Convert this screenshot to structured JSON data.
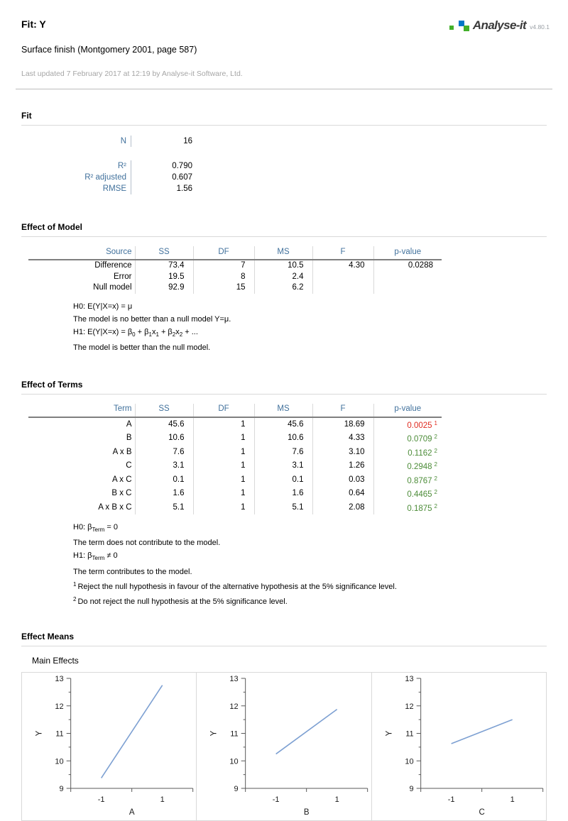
{
  "header": {
    "title": "Fit: Y",
    "subtitle": "Surface finish (Montgomery 2001, page 587)",
    "updated": "Last updated 7 February 2017 at 12:19 by Analyse-it Software, Ltd.",
    "logo": {
      "brand": "Analyse-it",
      "version": "v4.80.1"
    }
  },
  "colors": {
    "accent_blue": "#41719c",
    "significant": "#e02b20",
    "not_significant": "#4c8c38",
    "chart_line": "#7da0d2",
    "axis": "#595959",
    "logo_green": "#43b02a",
    "logo_blue": "#0077c8"
  },
  "fit": {
    "heading": "Fit",
    "rows": [
      {
        "label": "N",
        "value": "16"
      },
      {
        "label": "R²",
        "value": "0.790"
      },
      {
        "label": "R² adjusted",
        "value": "0.607"
      },
      {
        "label": "RMSE",
        "value": "1.56"
      }
    ]
  },
  "effect_of_model": {
    "heading": "Effect of Model",
    "columns": [
      "Source",
      "SS",
      "DF",
      "MS",
      "F",
      "p-value"
    ],
    "rows": [
      {
        "source": "Difference",
        "ss": "73.4",
        "df": "7",
        "ms": "10.5",
        "f": "4.30",
        "p": "0.0288"
      },
      {
        "source": "Error",
        "ss": "19.5",
        "df": "8",
        "ms": "2.4",
        "f": "",
        "p": ""
      },
      {
        "source": "Null model",
        "ss": "92.9",
        "df": "15",
        "ms": "6.2",
        "f": "",
        "p": ""
      }
    ],
    "hypotheses": [
      {
        "html": "H0: E(Y|X=x) = μ"
      },
      {
        "html": "The model is no better than a null model Y=μ."
      },
      {
        "html": "H1: E(Y|X=x) = β<sub>0</sub> + β<sub>1</sub>x<sub>1</sub> + β<sub>2</sub>x<sub>2</sub> + ..."
      },
      {
        "html": "The model is better than the null model."
      }
    ]
  },
  "effect_of_terms": {
    "heading": "Effect of Terms",
    "columns": [
      "Term",
      "SS",
      "DF",
      "MS",
      "F",
      "p-value"
    ],
    "rows": [
      {
        "term": "A",
        "ss": "45.6",
        "df": "1",
        "ms": "45.6",
        "f": "18.69",
        "p": "0.0025",
        "note": "1"
      },
      {
        "term": "B",
        "ss": "10.6",
        "df": "1",
        "ms": "10.6",
        "f": "4.33",
        "p": "0.0709",
        "note": "2"
      },
      {
        "term": "A x B",
        "ss": "7.6",
        "df": "1",
        "ms": "7.6",
        "f": "3.10",
        "p": "0.1162",
        "note": "2"
      },
      {
        "term": "C",
        "ss": "3.1",
        "df": "1",
        "ms": "3.1",
        "f": "1.26",
        "p": "0.2948",
        "note": "2"
      },
      {
        "term": "A x C",
        "ss": "0.1",
        "df": "1",
        "ms": "0.1",
        "f": "0.03",
        "p": "0.8767",
        "note": "2"
      },
      {
        "term": "B x C",
        "ss": "1.6",
        "df": "1",
        "ms": "1.6",
        "f": "0.64",
        "p": "0.4465",
        "note": "2"
      },
      {
        "term": "A x B x C",
        "ss": "5.1",
        "df": "1",
        "ms": "5.1",
        "f": "2.08",
        "p": "0.1875",
        "note": "2"
      }
    ],
    "hypotheses": [
      {
        "html": "H0: β<sub>Term</sub> = 0"
      },
      {
        "html": "The term does not contribute to the model."
      },
      {
        "html": "H1: β<sub>Term</sub> ≠ 0"
      },
      {
        "html": "The term contributes to the model."
      }
    ],
    "footnotes": [
      {
        "marker": "1",
        "text": "Reject the null hypothesis in favour of the alternative hypothesis at the 5% significance level.",
        "type": "reject"
      },
      {
        "marker": "2",
        "text": "Do not reject the null hypothesis at the 5% significance level.",
        "type": "accept"
      }
    ]
  },
  "effect_means": {
    "heading": "Effect Means",
    "subheading": "Main Effects"
  },
  "chart_data": [
    {
      "type": "line",
      "x_categories": [
        "-1",
        "1"
      ],
      "series": [
        {
          "name": "Y",
          "values": [
            9.375,
            12.75
          ]
        }
      ],
      "xlabel": "A",
      "ylabel": "Y",
      "ylim": [
        9,
        13
      ],
      "yticks": [
        9,
        10,
        11,
        12,
        13
      ],
      "grid": false,
      "legend": false
    },
    {
      "type": "line",
      "x_categories": [
        "-1",
        "1"
      ],
      "series": [
        {
          "name": "Y",
          "values": [
            10.25,
            11.875
          ]
        }
      ],
      "xlabel": "B",
      "ylabel": "Y",
      "ylim": [
        9,
        13
      ],
      "yticks": [
        9,
        10,
        11,
        12,
        13
      ],
      "grid": false,
      "legend": false
    },
    {
      "type": "line",
      "x_categories": [
        "-1",
        "1"
      ],
      "series": [
        {
          "name": "Y",
          "values": [
            10.625,
            11.5
          ]
        }
      ],
      "xlabel": "C",
      "ylabel": "Y",
      "ylim": [
        9,
        13
      ],
      "yticks": [
        9,
        10,
        11,
        12,
        13
      ],
      "grid": false,
      "legend": false
    }
  ]
}
